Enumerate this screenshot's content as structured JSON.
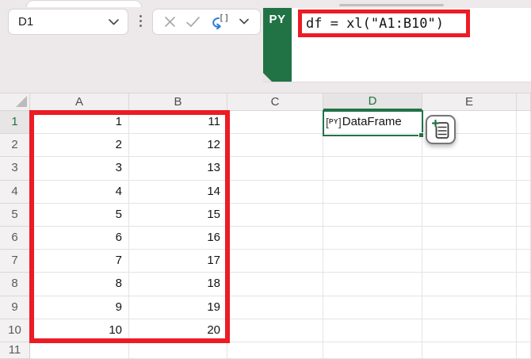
{
  "colors": {
    "accent_green": "#217346",
    "annotation_red": "#EC1B24",
    "python_refresh_blue": "#2E7CD6"
  },
  "name_box": {
    "value": "D1"
  },
  "toolbar": {
    "icons": [
      "vertical-dots-icon",
      "cancel-x-icon",
      "enter-check-icon",
      "python-refresh-brackets-icon",
      "chevron-down-icon"
    ]
  },
  "formula_bar": {
    "language_badge": "PY",
    "formula": "df = xl(\"A1:B10\")"
  },
  "grid": {
    "column_headers": [
      "A",
      "B",
      "C",
      "D",
      "E"
    ],
    "selected_column": "D",
    "selected_cell": "D1",
    "row_headers": [
      1,
      2,
      3,
      4,
      5,
      6,
      7,
      8,
      9,
      10,
      11
    ],
    "columns": {
      "A": [
        1,
        2,
        3,
        4,
        5,
        6,
        7,
        8,
        9,
        10
      ],
      "B": [
        11,
        12,
        13,
        14,
        15,
        16,
        17,
        18,
        19,
        20
      ]
    },
    "d1": {
      "type_badge": "PY",
      "value": "DataFrame"
    },
    "highlighted_range": "A1:B10"
  }
}
